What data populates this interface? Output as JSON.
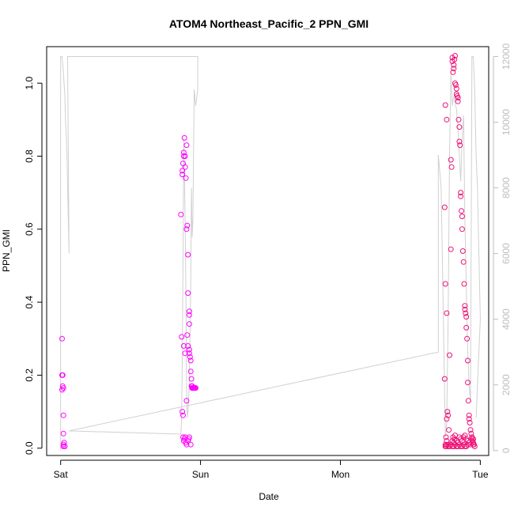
{
  "chart_data": {
    "type": "scatter",
    "title": "ATOM4 Northeast_Pacific_2 PPN_GMI",
    "xlabel": "Date",
    "ylabel": "PPN_GMI",
    "x_ticks": [
      "Sat",
      "Sun",
      "Mon",
      "Tue"
    ],
    "x_tick_days": [
      0,
      1,
      2,
      3
    ],
    "xlim": [
      -0.1,
      3.06
    ],
    "ylim": [
      -0.02,
      1.1
    ],
    "y_ticks": [
      0.0,
      0.2,
      0.4,
      0.6,
      0.8,
      1.0
    ],
    "y_tick_labels": [
      "0.0",
      "0.2",
      "0.4",
      "0.6",
      "0.8",
      "1.0"
    ],
    "y2lim": [
      -150,
      12300
    ],
    "y2_ticks": [
      0,
      2000,
      4000,
      6000,
      8000,
      10000,
      12000
    ],
    "colors": {
      "points": "#ff00ff",
      "points_dense": "#ee1177",
      "altitude_line": "#d0d0d0",
      "right_axis": "#bdbdbd"
    },
    "series": [
      {
        "kind": "points",
        "x_unit": "days since Sat 00:00",
        "x": [
          0.01,
          0.01,
          0.015,
          0.015,
          0.01,
          0.02,
          0.02,
          0.02,
          0.025,
          0.02,
          0.02,
          0.03,
          0.87,
          0.87,
          0.875,
          0.88,
          0.88,
          0.885,
          0.89,
          0.89,
          0.895,
          0.9,
          0.9,
          0.905,
          0.91,
          0.91,
          0.92,
          0.92,
          0.92,
          0.86,
          0.865,
          0.87,
          0.875,
          0.88,
          0.89,
          0.9,
          0.905,
          0.91,
          0.92,
          0.92,
          0.925,
          0.93,
          0.93,
          0.935,
          0.935,
          0.94,
          0.94,
          0.94,
          0.945,
          0.945,
          0.95,
          0.95,
          0.955,
          0.96,
          0.96,
          0.965,
          0.875,
          0.88,
          0.885,
          0.89,
          0.895,
          0.9,
          0.91,
          0.915,
          0.92,
          0.93,
          2.75,
          2.76,
          2.755,
          2.76,
          2.745,
          2.75,
          2.745,
          2.75,
          2.76,
          2.76,
          2.765,
          2.77,
          2.775,
          2.77,
          2.78,
          2.79,
          2.79,
          2.795,
          2.8,
          2.8,
          2.805,
          2.81,
          2.81,
          2.815,
          2.82,
          2.82,
          2.825,
          2.83,
          2.83,
          2.835,
          2.84,
          2.84,
          2.845,
          2.85,
          2.85,
          2.855,
          2.86,
          2.86,
          2.865,
          2.87,
          2.87,
          2.875,
          2.88,
          2.885,
          2.89,
          2.89,
          2.895,
          2.9,
          2.9,
          2.905,
          2.91,
          2.91,
          2.915,
          2.92,
          2.92,
          2.925,
          2.93,
          2.935,
          2.94,
          2.94,
          2.945,
          2.95,
          2.95,
          2.955,
          2.96,
          2.8,
          2.805,
          2.81,
          2.815,
          2.82,
          2.83,
          2.84,
          2.85,
          2.86,
          2.87,
          2.88,
          2.89,
          2.9,
          2.91,
          2.92,
          2.93,
          2.94,
          2.95,
          2.75,
          2.755,
          2.76,
          2.77,
          2.78,
          2.79,
          2.8,
          2.81,
          2.82,
          2.83,
          2.84,
          2.85,
          2.86,
          2.87,
          2.88,
          2.89,
          2.9,
          2.91
        ],
        "y": [
          0.3,
          0.2,
          0.2,
          0.17,
          0.16,
          0.165,
          0.09,
          0.04,
          0.015,
          0.01,
          0.005,
          0.005,
          0.76,
          0.75,
          0.78,
          0.8,
          0.81,
          0.85,
          0.8,
          0.77,
          0.74,
          0.83,
          0.6,
          0.61,
          0.53,
          0.425,
          0.375,
          0.365,
          0.34,
          0.64,
          0.305,
          0.1,
          0.09,
          0.28,
          0.26,
          0.13,
          0.31,
          0.28,
          0.27,
          0.26,
          0.25,
          0.24,
          0.21,
          0.19,
          0.17,
          0.17,
          0.165,
          0.165,
          0.165,
          0.165,
          0.165,
          0.165,
          0.165,
          0.165,
          0.165,
          0.165,
          0.03,
          0.02,
          0.025,
          0.03,
          0.015,
          0.01,
          0.02,
          0.025,
          0.03,
          0.01,
          0.01,
          0.02,
          0.03,
          0.08,
          0.19,
          0.45,
          0.66,
          0.94,
          0.9,
          0.37,
          0.1,
          0.09,
          0.05,
          0.01,
          0.255,
          0.545,
          0.79,
          0.77,
          1.07,
          1.06,
          1.03,
          1.04,
          1.05,
          1.065,
          1.075,
          1.0,
          0.995,
          0.985,
          0.97,
          0.965,
          0.96,
          0.95,
          0.9,
          0.88,
          0.84,
          0.83,
          0.7,
          0.69,
          0.65,
          0.635,
          0.6,
          0.54,
          0.51,
          0.45,
          0.39,
          0.38,
          0.37,
          0.36,
          0.33,
          0.3,
          0.24,
          0.18,
          0.13,
          0.09,
          0.08,
          0.07,
          0.05,
          0.04,
          0.03,
          0.025,
          0.02,
          0.015,
          0.01,
          0.01,
          0.005,
          0.02,
          0.03,
          0.015,
          0.025,
          0.035,
          0.02,
          0.015,
          0.03,
          0.025,
          0.02,
          0.03,
          0.035,
          0.025,
          0.02,
          0.015,
          0.01,
          0.03,
          0.025,
          0.005,
          0.005,
          0.01,
          0.005,
          0.005,
          0.01,
          0.005,
          0.005,
          0.01,
          0.005,
          0.005,
          0.01,
          0.005,
          0.005,
          0.01,
          0.005,
          0.005,
          0.01
        ]
      },
      {
        "kind": "line",
        "axis": "right",
        "x_unit": "days since Sat 00:00",
        "x": [
          0.0,
          0.0,
          0.01,
          0.02,
          0.03,
          0.035,
          0.04,
          0.045,
          0.05,
          0.06,
          0.05,
          0.98,
          0.98,
          0.965,
          0.955,
          0.95,
          0.945,
          0.94,
          0.935,
          0.93,
          0.925,
          0.92,
          0.915,
          0.91,
          0.905,
          0.9,
          0.895,
          0.89,
          0.885,
          0.88,
          0.875,
          0.87,
          0.865,
          0.86,
          0.06,
          2.7,
          2.7,
          2.72,
          2.74,
          2.75,
          2.76,
          2.77,
          2.78,
          2.79,
          2.8,
          2.81,
          2.82,
          2.83,
          2.84,
          2.85,
          2.86,
          2.87,
          2.88,
          2.89,
          2.9,
          2.91,
          2.92,
          2.93,
          2.94,
          2.95,
          2.96,
          2.97,
          2.98,
          2.99,
          3.0,
          2.98,
          2.97
        ],
        "y": [
          0,
          12000,
          12000,
          11500,
          10800,
          10000,
          9600,
          9000,
          8000,
          6000,
          12000,
          12000,
          11000,
          10500,
          11000,
          9000,
          7000,
          6500,
          8000,
          5000,
          3500,
          2000,
          1600,
          1200,
          1000,
          2000,
          5000,
          7000,
          8500,
          9500,
          6000,
          3000,
          1000,
          500,
          600,
          3000,
          9000,
          8000,
          3000,
          400,
          800,
          4000,
          9000,
          11500,
          10500,
          10800,
          10600,
          10400,
          9800,
          9000,
          8200,
          9500,
          10200,
          7000,
          5000,
          3000,
          2000,
          1500,
          12000,
          12000,
          11000,
          9000,
          8000,
          6000,
          4000,
          2000,
          1000
        ]
      }
    ]
  }
}
